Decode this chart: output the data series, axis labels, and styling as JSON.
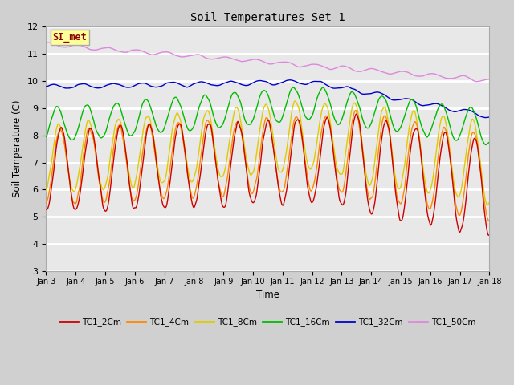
{
  "title": "Soil Temperatures Set 1",
  "xlabel": "Time",
  "ylabel": "Soil Temperature (C)",
  "annotation": "SI_met",
  "ylim": [
    3.0,
    12.0
  ],
  "yticks": [
    3.0,
    4.0,
    5.0,
    6.0,
    7.0,
    8.0,
    9.0,
    10.0,
    11.0,
    12.0
  ],
  "xtick_labels": [
    "Jan 3",
    "Jan 4",
    "Jan 5",
    "Jan 6",
    "Jan 7",
    "Jan 8",
    "Jan 9",
    "Jan 10",
    "Jan 11",
    "Jan 12",
    "Jan 13",
    "Jan 14",
    "Jan 15",
    "Jan 16",
    "Jan 17",
    "Jan 18"
  ],
  "series": {
    "TC1_2Cm": {
      "color": "#cc0000",
      "lw": 1.0
    },
    "TC1_4Cm": {
      "color": "#ff8800",
      "lw": 1.0
    },
    "TC1_8Cm": {
      "color": "#ddcc00",
      "lw": 1.0
    },
    "TC1_16Cm": {
      "color": "#00bb00",
      "lw": 1.0
    },
    "TC1_32Cm": {
      "color": "#0000cc",
      "lw": 1.0
    },
    "TC1_50Cm": {
      "color": "#dd88dd",
      "lw": 1.0
    }
  },
  "fig_bg": "#d0d0d0",
  "plot_bg": "#e8e8e8",
  "n_points": 720
}
